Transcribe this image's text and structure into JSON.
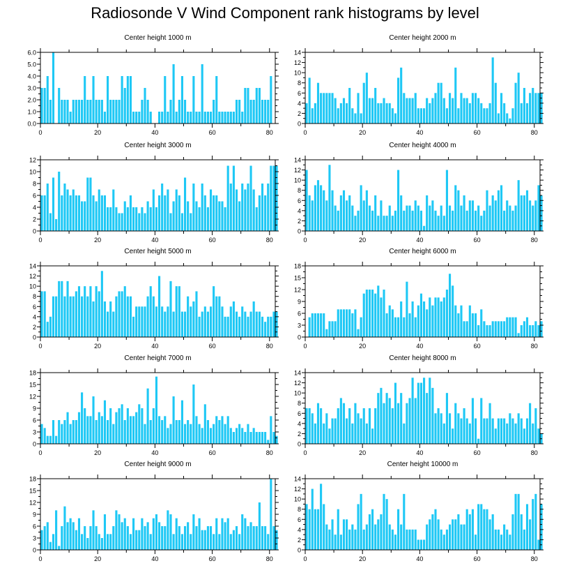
{
  "title": "Radiosonde V Wind Component rank histograms by level",
  "colors": {
    "bar": "#1ec8f5",
    "axis": "#000000"
  },
  "chart_data": [
    {
      "type": "bar",
      "title": "Center height 1000 m",
      "xlabel": "",
      "ylabel": "",
      "xlim": [
        0,
        82
      ],
      "ylim": [
        0,
        6
      ],
      "yticks": [
        "0.0",
        "1.0",
        "2.0",
        "3.0",
        "4.0",
        "5.0",
        "6.0"
      ],
      "ytick_values": [
        0,
        1,
        2,
        3,
        4,
        5,
        6
      ],
      "xticks": [
        "0",
        "20",
        "40",
        "60",
        "80"
      ],
      "xtick_values": [
        0,
        20,
        40,
        60,
        80
      ],
      "values": [
        3,
        3,
        4,
        2,
        6,
        0,
        3,
        2,
        2,
        2,
        1,
        2,
        2,
        2,
        2,
        4,
        2,
        2,
        4,
        2,
        2,
        2,
        1,
        4,
        2,
        2,
        2,
        2,
        4,
        3,
        4,
        4,
        1,
        1,
        1,
        2,
        3,
        2,
        1,
        0,
        0,
        1,
        1,
        4,
        1,
        2,
        5,
        1,
        2,
        4,
        2,
        1,
        1,
        4,
        1,
        1,
        5,
        1,
        1,
        1,
        2,
        4,
        1,
        1,
        1,
        1,
        1,
        1,
        2,
        2,
        1,
        3,
        3,
        2,
        2,
        3,
        3,
        2,
        2,
        2,
        4,
        0,
        0
      ]
    },
    {
      "type": "bar",
      "title": "Center height 2000 m",
      "xlabel": "",
      "ylabel": "",
      "xlim": [
        0,
        82
      ],
      "ylim": [
        0,
        14
      ],
      "yticks": [
        "0",
        "2",
        "4",
        "6",
        "8",
        "10",
        "12",
        "14"
      ],
      "ytick_values": [
        0,
        2,
        4,
        6,
        8,
        10,
        12,
        14
      ],
      "xticks": [
        "0",
        "20",
        "40",
        "60",
        "80"
      ],
      "xtick_values": [
        0,
        20,
        40,
        60,
        80
      ],
      "values": [
        4,
        9,
        3,
        4,
        8,
        6,
        6,
        6,
        6,
        6,
        5,
        3,
        4,
        5,
        4,
        7,
        3,
        2,
        6,
        2,
        8,
        10,
        5,
        5,
        7,
        4,
        4,
        5,
        4,
        4,
        3,
        2,
        9,
        11,
        6,
        5,
        5,
        5,
        6,
        3,
        3,
        3,
        5,
        4,
        5,
        6,
        8,
        8,
        5,
        3,
        6,
        5,
        11,
        3,
        6,
        5,
        5,
        4,
        6,
        6,
        5,
        4,
        3,
        3,
        4,
        13,
        8,
        2,
        6,
        4,
        2,
        1,
        3,
        8,
        10,
        4,
        7,
        4,
        6,
        7,
        6,
        6,
        6
      ]
    },
    {
      "type": "bar",
      "title": "Center height 3000 m",
      "xlabel": "",
      "ylabel": "",
      "xlim": [
        0,
        82
      ],
      "ylim": [
        0,
        12
      ],
      "yticks": [
        "0",
        "2",
        "4",
        "6",
        "8",
        "10",
        "12"
      ],
      "ytick_values": [
        0,
        2,
        4,
        6,
        8,
        10,
        12
      ],
      "xticks": [
        "0",
        "20",
        "40",
        "60",
        "80"
      ],
      "xtick_values": [
        0,
        20,
        40,
        60,
        80
      ],
      "values": [
        6,
        6,
        8,
        3,
        9,
        2,
        10,
        6,
        8,
        7,
        6,
        7,
        6,
        6,
        5,
        5,
        9,
        9,
        6,
        5,
        7,
        6,
        6,
        4,
        4,
        7,
        4,
        3,
        3,
        5,
        4,
        6,
        4,
        4,
        3,
        4,
        3,
        5,
        4,
        7,
        4,
        6,
        8,
        6,
        7,
        3,
        5,
        7,
        6,
        3,
        9,
        5,
        3,
        8,
        5,
        4,
        8,
        6,
        4,
        7,
        6,
        6,
        5,
        5,
        4,
        11,
        8,
        11,
        7,
        5,
        8,
        7,
        8,
        11,
        7,
        4,
        6,
        8,
        6,
        8,
        11,
        11,
        11
      ]
    },
    {
      "type": "bar",
      "title": "Center height 4000 m",
      "xlabel": "",
      "ylabel": "",
      "xlim": [
        0,
        82
      ],
      "ylim": [
        0,
        14
      ],
      "yticks": [
        "0",
        "2",
        "4",
        "6",
        "8",
        "10",
        "12",
        "14"
      ],
      "ytick_values": [
        0,
        2,
        4,
        6,
        8,
        10,
        12,
        14
      ],
      "xticks": [
        "0",
        "20",
        "40",
        "60",
        "80"
      ],
      "xtick_values": [
        0,
        20,
        40,
        60,
        80
      ],
      "values": [
        12,
        7,
        6,
        9,
        10,
        9,
        8,
        6,
        13,
        8,
        5,
        4,
        7,
        8,
        6,
        7,
        5,
        3,
        4,
        9,
        6,
        8,
        5,
        4,
        7,
        3,
        6,
        3,
        3,
        5,
        3,
        4,
        12,
        7,
        4,
        5,
        5,
        4,
        6,
        5,
        4,
        1,
        7,
        5,
        6,
        4,
        3,
        5,
        3,
        12,
        5,
        4,
        9,
        8,
        5,
        7,
        4,
        6,
        6,
        4,
        5,
        3,
        4,
        8,
        5,
        7,
        6,
        8,
        9,
        4,
        6,
        5,
        4,
        5,
        10,
        7,
        7,
        8,
        6,
        5,
        6,
        9,
        7
      ]
    },
    {
      "type": "bar",
      "title": "Center height 5000 m",
      "xlabel": "",
      "ylabel": "",
      "xlim": [
        0,
        82
      ],
      "ylim": [
        0,
        14
      ],
      "yticks": [
        "0",
        "2",
        "4",
        "6",
        "8",
        "10",
        "12",
        "14"
      ],
      "ytick_values": [
        0,
        2,
        4,
        6,
        8,
        10,
        12,
        14
      ],
      "xticks": [
        "0",
        "20",
        "40",
        "60",
        "80"
      ],
      "xtick_values": [
        0,
        20,
        40,
        60,
        80
      ],
      "values": [
        9,
        9,
        3,
        4,
        8,
        8,
        11,
        11,
        8,
        11,
        8,
        8,
        9,
        10,
        8,
        10,
        8,
        10,
        7,
        10,
        9,
        13,
        7,
        5,
        7,
        5,
        8,
        9,
        9,
        10,
        8,
        8,
        4,
        6,
        6,
        6,
        6,
        8,
        10,
        8,
        6,
        12,
        6,
        5,
        6,
        11,
        5,
        10,
        10,
        5,
        5,
        8,
        6,
        7,
        9,
        4,
        5,
        6,
        5,
        6,
        10,
        8,
        8,
        6,
        4,
        4,
        6,
        7,
        5,
        4,
        6,
        5,
        4,
        5,
        7,
        5,
        5,
        4,
        3,
        4,
        4,
        5,
        5
      ]
    },
    {
      "type": "bar",
      "title": "Center height 6000 m",
      "xlabel": "",
      "ylabel": "",
      "xlim": [
        0,
        82
      ],
      "ylim": [
        0,
        18
      ],
      "yticks": [
        "0",
        "3",
        "6",
        "9",
        "12",
        "15",
        "18"
      ],
      "ytick_values": [
        0,
        3,
        6,
        9,
        12,
        15,
        18
      ],
      "xticks": [
        "0",
        "20",
        "40",
        "60",
        "80"
      ],
      "xtick_values": [
        0,
        20,
        40,
        60,
        80
      ],
      "values": [
        0,
        5,
        6,
        6,
        6,
        6,
        6,
        2,
        4,
        4,
        4,
        7,
        7,
        7,
        7,
        7,
        6,
        7,
        2,
        5,
        11,
        12,
        12,
        12,
        11,
        13,
        10,
        12,
        6,
        8,
        7,
        5,
        5,
        9,
        5,
        14,
        6,
        9,
        5,
        8,
        11,
        9,
        7,
        10,
        8,
        10,
        10,
        9,
        10,
        12,
        16,
        13,
        8,
        6,
        8,
        4,
        4,
        8,
        6,
        6,
        3,
        7,
        4,
        3,
        3,
        4,
        4,
        4,
        4,
        4,
        5,
        5,
        5,
        5,
        1,
        3,
        4,
        5,
        3,
        3,
        4,
        3,
        4
      ]
    },
    {
      "type": "bar",
      "title": "Center height 7000 m",
      "xlabel": "",
      "ylabel": "",
      "xlim": [
        0,
        82
      ],
      "ylim": [
        0,
        18
      ],
      "yticks": [
        "0",
        "3",
        "6",
        "9",
        "12",
        "15",
        "18"
      ],
      "ytick_values": [
        0,
        3,
        6,
        9,
        12,
        15,
        18
      ],
      "xticks": [
        "0",
        "20",
        "40",
        "60",
        "80"
      ],
      "xtick_values": [
        0,
        20,
        40,
        60,
        80
      ],
      "values": [
        5,
        4,
        2,
        2,
        6,
        2,
        6,
        5,
        6,
        8,
        5,
        6,
        6,
        8,
        13,
        9,
        7,
        7,
        12,
        6,
        8,
        7,
        11,
        6,
        9,
        5,
        8,
        9,
        10,
        6,
        9,
        7,
        7,
        8,
        10,
        9,
        5,
        14,
        6,
        9,
        17,
        7,
        6,
        7,
        4,
        5,
        12,
        6,
        6,
        11,
        5,
        6,
        5,
        15,
        7,
        5,
        4,
        10,
        6,
        4,
        5,
        7,
        6,
        7,
        5,
        7,
        4,
        3,
        4,
        5,
        4,
        3,
        5,
        3,
        4,
        3,
        3,
        3,
        3,
        1,
        7,
        3,
        2
      ]
    },
    {
      "type": "bar",
      "title": "Center height 8000 m",
      "xlabel": "",
      "ylabel": "",
      "xlim": [
        0,
        82
      ],
      "ylim": [
        0,
        14
      ],
      "yticks": [
        "0",
        "2",
        "4",
        "6",
        "8",
        "10",
        "12",
        "14"
      ],
      "ytick_values": [
        0,
        2,
        4,
        6,
        8,
        10,
        12,
        14
      ],
      "xticks": [
        "0",
        "20",
        "40",
        "60",
        "80"
      ],
      "xtick_values": [
        0,
        20,
        40,
        60,
        80
      ],
      "values": [
        7,
        7,
        6,
        4,
        8,
        7,
        4,
        6,
        3,
        5,
        5,
        7,
        9,
        8,
        5,
        7,
        4,
        8,
        6,
        5,
        7,
        4,
        7,
        3,
        7,
        10,
        11,
        8,
        10,
        9,
        7,
        12,
        8,
        10,
        4,
        8,
        9,
        13,
        9,
        12,
        12,
        13,
        10,
        13,
        11,
        6,
        7,
        6,
        4,
        10,
        6,
        3,
        8,
        6,
        5,
        7,
        5,
        4,
        9,
        5,
        1,
        9,
        5,
        5,
        8,
        5,
        3,
        5,
        5,
        5,
        4,
        6,
        5,
        4,
        6,
        5,
        3,
        5,
        8,
        4,
        7,
        3,
        2
      ]
    },
    {
      "type": "bar",
      "title": "Center height 9000 m",
      "xlabel": "",
      "ylabel": "",
      "xlim": [
        0,
        82
      ],
      "ylim": [
        0,
        18
      ],
      "yticks": [
        "0",
        "3",
        "6",
        "9",
        "12",
        "15",
        "18"
      ],
      "ytick_values": [
        0,
        3,
        6,
        9,
        12,
        15,
        18
      ],
      "xticks": [
        "0",
        "20",
        "40",
        "60",
        "80"
      ],
      "xtick_values": [
        0,
        20,
        40,
        60,
        80
      ],
      "values": [
        5,
        6,
        7,
        2,
        4,
        10,
        1,
        6,
        11,
        7,
        8,
        7,
        5,
        8,
        4,
        6,
        3,
        6,
        10,
        6,
        4,
        3,
        9,
        4,
        4,
        6,
        10,
        9,
        7,
        8,
        6,
        4,
        8,
        5,
        5,
        8,
        6,
        7,
        4,
        8,
        9,
        7,
        6,
        6,
        10,
        9,
        4,
        8,
        6,
        4,
        6,
        7,
        4,
        9,
        6,
        8,
        5,
        5,
        6,
        6,
        4,
        8,
        4,
        8,
        7,
        8,
        4,
        5,
        6,
        4,
        9,
        8,
        6,
        7,
        6,
        6,
        12,
        6,
        6,
        4,
        18,
        6,
        5
      ]
    },
    {
      "type": "bar",
      "title": "Center height 10000 m",
      "xlabel": "",
      "ylabel": "",
      "xlim": [
        0,
        82
      ],
      "ylim": [
        0,
        14
      ],
      "yticks": [
        "0",
        "2",
        "4",
        "6",
        "8",
        "10",
        "12",
        "14"
      ],
      "ytick_values": [
        0,
        2,
        4,
        6,
        8,
        10,
        12,
        14
      ],
      "xticks": [
        "0",
        "20",
        "40",
        "60",
        "80"
      ],
      "xtick_values": [
        0,
        20,
        40,
        60,
        80
      ],
      "values": [
        9,
        8,
        12,
        8,
        8,
        13,
        9,
        5,
        4,
        6,
        3,
        8,
        3,
        6,
        6,
        4,
        5,
        4,
        9,
        11,
        4,
        5,
        7,
        8,
        5,
        6,
        7,
        11,
        10,
        5,
        4,
        3,
        8,
        5,
        11,
        4,
        4,
        4,
        4,
        2,
        2,
        2,
        5,
        6,
        7,
        8,
        6,
        4,
        3,
        4,
        5,
        6,
        6,
        7,
        5,
        5,
        8,
        7,
        8,
        3,
        9,
        9,
        8,
        8,
        6,
        7,
        4,
        4,
        3,
        5,
        4,
        3,
        7,
        11,
        11,
        7,
        4,
        9,
        6,
        10,
        11,
        2,
        9
      ]
    }
  ]
}
